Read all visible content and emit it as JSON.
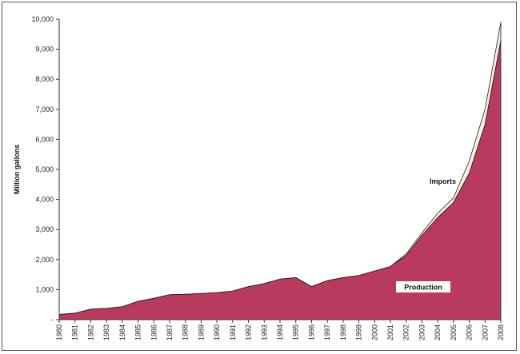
{
  "chart_data": {
    "type": "area",
    "stacked": true,
    "x": [
      "1980",
      "1981",
      "1982",
      "1983",
      "1984",
      "1985",
      "1986",
      "1987",
      "1988",
      "1989",
      "1990",
      "1991",
      "1992",
      "1993",
      "1994",
      "1995",
      "1996",
      "1997",
      "1998",
      "1999",
      "2000",
      "2001",
      "2002",
      "2003",
      "2004",
      "2005",
      "2006",
      "2007",
      "2008"
    ],
    "series": [
      {
        "name": "Production",
        "color": "#b83a5e",
        "values": [
          175,
          215,
          350,
          375,
          430,
          610,
          710,
          830,
          845,
          870,
          900,
          950,
          1100,
          1200,
          1350,
          1400,
          1100,
          1300,
          1400,
          1470,
          1620,
          1770,
          2140,
          2810,
          3400,
          3900,
          4880,
          6500,
          9300
        ]
      },
      {
        "name": "Imports",
        "color": "#f3f1e1",
        "values": [
          0,
          0,
          0,
          0,
          0,
          0,
          0,
          0,
          0,
          0,
          0,
          0,
          0,
          0,
          0,
          0,
          0,
          0,
          0,
          0,
          0,
          0,
          50,
          80,
          140,
          150,
          400,
          500,
          600
        ]
      }
    ],
    "ylabel": "Million gallons",
    "ylim": [
      0,
      10000
    ],
    "yticks": [
      0,
      1000,
      2000,
      3000,
      4000,
      5000,
      6000,
      7000,
      8000,
      9000,
      10000
    ],
    "ytick_labels": [
      "-",
      "1,000",
      "2,000",
      "3,000",
      "4,000",
      "5,000",
      "6,000",
      "7,000",
      "8,000",
      "9,000",
      "10,000"
    ],
    "grid": false,
    "annotations": [
      "Imports",
      "Production"
    ]
  }
}
